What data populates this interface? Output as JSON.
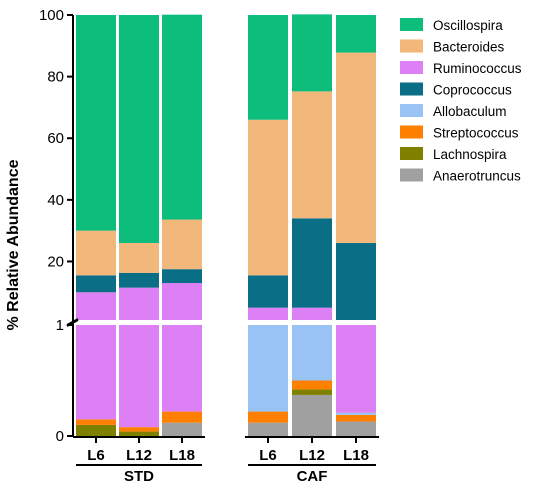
{
  "chart_data": {
    "type": "bar",
    "stacked": true,
    "ylabel": "% Relative Abundance",
    "y_axis_break": {
      "lower_range": [
        0,
        1
      ],
      "upper_range": [
        1,
        100
      ],
      "lower_ticks": [
        0,
        1
      ],
      "upper_ticks": [
        20,
        40,
        60,
        80,
        100
      ]
    },
    "groups": [
      {
        "name": "STD",
        "categories": [
          "L6",
          "L12",
          "L18"
        ]
      },
      {
        "name": "CAF",
        "categories": [
          "L6",
          "L12",
          "L18"
        ]
      }
    ],
    "categories": [
      "L6",
      "L12",
      "L18",
      "L6",
      "L12",
      "L18"
    ],
    "legend_position": "right",
    "series": [
      {
        "name": "Anaerotruncus",
        "color": "#a0a0a0",
        "values": [
          0.0,
          0.0,
          0.12,
          0.12,
          0.37,
          0.13
        ]
      },
      {
        "name": "Lachnospira",
        "color": "#808000",
        "values": [
          0.1,
          0.04,
          0.0,
          0.0,
          0.05,
          0.0
        ]
      },
      {
        "name": "Streptococcus",
        "color": "#ff7f00",
        "values": [
          0.05,
          0.04,
          0.1,
          0.1,
          0.08,
          0.06
        ]
      },
      {
        "name": "Allobaculum",
        "color": "#99c2f5",
        "values": [
          0.0,
          0.0,
          0.0,
          0.78,
          0.5,
          0.02
        ]
      },
      {
        "name": "Ruminococcus",
        "color": "#dd80f5",
        "values": [
          9.85,
          11.42,
          12.78,
          4.0,
          4.0,
          0.79
        ]
      },
      {
        "name": "Coprococcus",
        "color": "#0a6f86",
        "values": [
          5.5,
          4.8,
          4.5,
          10.5,
          29.0,
          25.0
        ]
      },
      {
        "name": "Bacteroides",
        "color": "#f2b77b",
        "values": [
          14.5,
          9.7,
          16.1,
          50.5,
          41.2,
          61.8
        ]
      },
      {
        "name": "Oscillospira",
        "color": "#0dbd7b",
        "values": [
          70.0,
          74.0,
          66.5,
          34.0,
          25.0,
          12.2
        ]
      }
    ],
    "legend": [
      "Oscillospira",
      "Bacteroides",
      "Ruminococcus",
      "Coprococcus",
      "Allobaculum",
      "Streptococcus",
      "Lachnospira",
      "Anaerotruncus"
    ]
  }
}
